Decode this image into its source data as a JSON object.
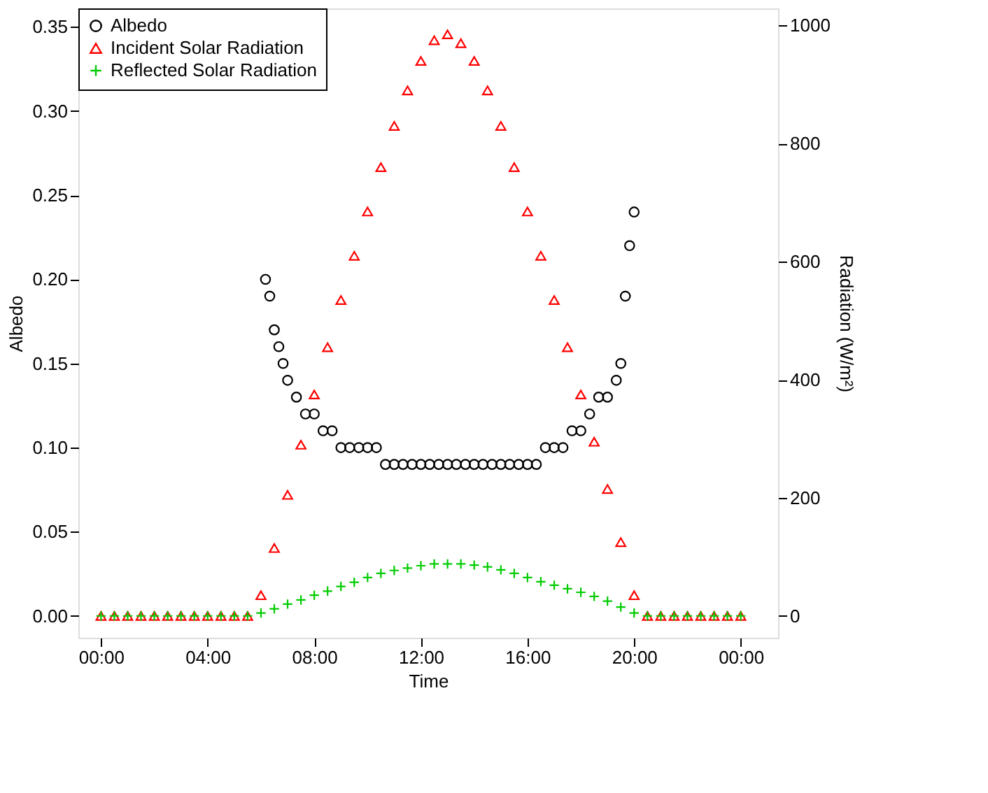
{
  "chart_data": {
    "type": "scatter",
    "xlabel": "Time",
    "ylabel": "Albedo",
    "y2label": "Radiation (W/m²)",
    "legend": "top left",
    "grid": false,
    "xlim": [
      -0.85,
      25.4
    ],
    "xticks": [
      {
        "value": 0,
        "label": "00:00"
      },
      {
        "value": 4,
        "label": "04:00"
      },
      {
        "value": 8,
        "label": "08:00"
      },
      {
        "value": 12,
        "label": "12:00"
      },
      {
        "value": 16,
        "label": "16:00"
      },
      {
        "value": 20,
        "label": "20:00"
      },
      {
        "value": 24,
        "label": "00:00"
      }
    ],
    "ylim": [
      -0.013,
      0.361
    ],
    "yticks": [
      {
        "value": 0,
        "label": "0.00"
      },
      {
        "value": 0.05,
        "label": "0.05"
      },
      {
        "value": 0.1,
        "label": "0.10"
      },
      {
        "value": 0.15,
        "label": "0.15"
      },
      {
        "value": 0.2,
        "label": "0.20"
      },
      {
        "value": 0.25,
        "label": "0.25"
      },
      {
        "value": 0.3,
        "label": "0.30"
      },
      {
        "value": 0.35,
        "label": "0.35"
      }
    ],
    "y2lim": [
      -37,
      1029
    ],
    "y2ticks": [
      0,
      200,
      400,
      600,
      800,
      1000
    ],
    "x": [
      0,
      0.5,
      1,
      1.5,
      2,
      2.5,
      3,
      3.5,
      4,
      4.5,
      5,
      5.5,
      6,
      6.5,
      7,
      7.5,
      8,
      8.5,
      9,
      9.5,
      10,
      10.5,
      11,
      11.5,
      12,
      12.5,
      13,
      13.5,
      14,
      14.5,
      15,
      15.5,
      16,
      16.5,
      17,
      17.5,
      18,
      18.5,
      19,
      19.5,
      20,
      20.5,
      21,
      21.5,
      22,
      22.5,
      23,
      23.5,
      24
    ],
    "series": [
      {
        "name": "Albedo",
        "color": "#000000",
        "marker": "circle",
        "axis": "y",
        "x": [
          6.17,
          6.33,
          6.5,
          6.67,
          6.83,
          7.0,
          7.33,
          7.67,
          8.0,
          8.33,
          8.67,
          9.0,
          9.33,
          9.67,
          10.0,
          10.33,
          10.67,
          11.0,
          11.33,
          11.67,
          12.0,
          12.33,
          12.67,
          13.0,
          13.33,
          13.67,
          14.0,
          14.33,
          14.67,
          15.0,
          15.33,
          15.67,
          16.0,
          16.33,
          16.67,
          17.0,
          17.33,
          17.67,
          18.0,
          18.33,
          18.67,
          19.0,
          19.33,
          19.5,
          19.67,
          19.83,
          20.0
        ],
        "values": [
          0.2,
          0.19,
          0.17,
          0.16,
          0.15,
          0.14,
          0.13,
          0.12,
          0.12,
          0.11,
          0.11,
          0.1,
          0.1,
          0.1,
          0.1,
          0.1,
          0.09,
          0.09,
          0.09,
          0.09,
          0.09,
          0.09,
          0.09,
          0.09,
          0.09,
          0.09,
          0.09,
          0.09,
          0.09,
          0.09,
          0.09,
          0.09,
          0.09,
          0.09,
          0.1,
          0.1,
          0.1,
          0.11,
          0.11,
          0.12,
          0.13,
          0.13,
          0.14,
          0.15,
          0.19,
          0.22,
          0.24
        ]
      },
      {
        "name": "Incident Solar Radiation",
        "color": "#ff0000",
        "marker": "triangle",
        "axis": "y2",
        "values": [
          0,
          0,
          0,
          0,
          0,
          0,
          0,
          0,
          0,
          0,
          0,
          0,
          35,
          115,
          205,
          290,
          375,
          455,
          535,
          610,
          685,
          760,
          830,
          890,
          940,
          975,
          985,
          970,
          940,
          890,
          830,
          760,
          685,
          610,
          535,
          455,
          375,
          295,
          215,
          125,
          35,
          0,
          0,
          0,
          0,
          0,
          0,
          0,
          0
        ]
      },
      {
        "name": "Reflected Solar Radiation",
        "color": "#00cc00",
        "marker": "cross",
        "axis": "y2",
        "values": [
          0,
          0,
          0,
          0,
          0,
          0,
          0,
          0,
          0,
          0,
          0,
          0,
          5,
          12,
          20,
          27,
          35,
          42,
          50,
          57,
          65,
          72,
          77,
          81,
          85,
          88,
          88,
          88,
          86,
          83,
          78,
          72,
          65,
          58,
          52,
          46,
          40,
          33,
          25,
          15,
          5,
          0,
          0,
          0,
          0,
          0,
          0,
          0,
          0
        ]
      }
    ]
  }
}
